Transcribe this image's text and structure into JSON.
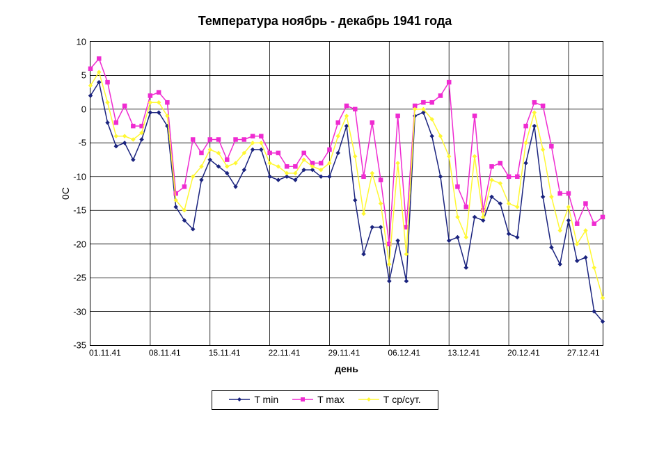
{
  "chart": {
    "type": "line",
    "title": "Температура ноябрь  - декабрь 1941 года",
    "title_fontsize": 18,
    "background_color": "#ffffff",
    "grid_color": "#000000",
    "axis_label_fontsize": 14,
    "tick_fontsize": 12,
    "y_label": "0С",
    "x_label": "день",
    "ylim": [
      -35,
      10
    ],
    "ytick_step": 5,
    "yticks": [
      10,
      5,
      0,
      -5,
      -10,
      -15,
      -20,
      -25,
      -30,
      -35
    ],
    "x_count": 61,
    "x_categories": [
      "01.11.41",
      "02.11.41",
      "03.11.41",
      "04.11.41",
      "05.11.41",
      "06.11.41",
      "07.11.41",
      "08.11.41",
      "09.11.41",
      "10.11.41",
      "11.11.41",
      "12.11.41",
      "13.11.41",
      "14.11.41",
      "15.11.41",
      "16.11.41",
      "17.11.41",
      "18.11.41",
      "19.11.41",
      "20.11.41",
      "21.11.41",
      "22.11.41",
      "23.11.41",
      "24.11.41",
      "25.11.41",
      "26.11.41",
      "27.11.41",
      "28.11.41",
      "29.11.41",
      "30.11.41",
      "01.12.41",
      "02.12.41",
      "03.12.41",
      "04.12.41",
      "05.12.41",
      "06.12.41",
      "07.12.41",
      "08.12.41",
      "09.12.41",
      "10.12.41",
      "11.12.41",
      "12.12.41",
      "13.12.41",
      "14.12.41",
      "15.12.41",
      "16.12.41",
      "17.12.41",
      "18.12.41",
      "19.12.41",
      "20.12.41",
      "21.12.41",
      "22.12.41",
      "23.12.41",
      "24.12.41",
      "25.12.41",
      "26.12.41",
      "27.12.41",
      "28.12.41",
      "29.12.41",
      "30.12.41",
      "31.12.41"
    ],
    "x_tick_labels": [
      "01.11.41",
      "08.11.41",
      "15.11.41",
      "22.11.41",
      "29.11.41",
      "06.12.41",
      "13.12.41",
      "20.12.41",
      "27.12.41"
    ],
    "x_tick_positions": [
      0,
      7,
      14,
      21,
      28,
      35,
      42,
      49,
      56
    ],
    "series": [
      {
        "name": "T min",
        "legend": "T min",
        "color": "#1a237e",
        "line_width": 1.5,
        "marker": "diamond",
        "marker_size": 6,
        "values": [
          2,
          4,
          -2,
          -5.5,
          -5,
          -7.5,
          -4.5,
          -0.5,
          -0.5,
          -2.5,
          -14.5,
          -16.5,
          -17.8,
          -10.5,
          -7.5,
          -8.5,
          -9.5,
          -11.5,
          -9,
          -6,
          -6,
          -10,
          -10.5,
          -10,
          -10.5,
          -9,
          -9,
          -10,
          -10,
          -6.5,
          -2.5,
          -13.5,
          -21.5,
          -17.5,
          -17.5,
          -25.5,
          -19.5,
          -25.5,
          -1,
          -0.5,
          -4,
          -10,
          -19.5,
          -19,
          -23.5,
          -16,
          -16.5,
          -13,
          -14,
          -18.5,
          -19,
          -8,
          -2.5,
          -13,
          -20.5,
          -23,
          -16.5,
          -22.5,
          -22,
          -30,
          -31.5
        ]
      },
      {
        "name": "T max",
        "legend": "T max",
        "color": "#ef2bd1",
        "line_width": 1.5,
        "marker": "square",
        "marker_size": 6,
        "values": [
          6,
          7.5,
          4,
          -2,
          0.5,
          -2.5,
          -2.5,
          2,
          2.5,
          1,
          -12.5,
          -11.5,
          -4.5,
          -6.5,
          -4.5,
          -4.5,
          -7.5,
          -4.5,
          -4.5,
          -4,
          -4,
          -6.5,
          -6.5,
          -8.5,
          -8.5,
          -6.5,
          -8,
          -8,
          -6,
          -2,
          0.5,
          0,
          -10,
          -2,
          -10.5,
          -20,
          -1,
          -17.5,
          0.5,
          1,
          1,
          2,
          4,
          -11.5,
          -14.5,
          -1,
          -15,
          -8.5,
          -8,
          -10,
          -10,
          -2.5,
          1,
          0.5,
          -5.5,
          -12.5,
          -12.5,
          -17,
          -14,
          -17,
          -16
        ]
      },
      {
        "name": "T avg",
        "legend": "Т ср/сут.",
        "color": "#fff833",
        "line_width": 1.5,
        "marker": "diamond",
        "marker_size": 6,
        "values": [
          3.5,
          5.5,
          1,
          -4,
          -4,
          -4.5,
          -3.5,
          1,
          1,
          -1,
          -13.5,
          -15,
          -10,
          -8.5,
          -6,
          -6.5,
          -8.5,
          -8,
          -6.5,
          -5,
          -5,
          -8,
          -8.5,
          -9.5,
          -9.5,
          -7.5,
          -8.5,
          -9,
          -8,
          -4,
          -1,
          -7,
          -15.5,
          -9.5,
          -14,
          -23,
          -8,
          -21.5,
          0,
          0,
          -1.5,
          -4,
          -7,
          -16,
          -19,
          -7,
          -16,
          -10.5,
          -11,
          -14,
          -14.5,
          -5,
          -0.5,
          -6,
          -13,
          -18,
          -14.5,
          -20,
          -18,
          -23.5,
          -28
        ]
      }
    ]
  }
}
